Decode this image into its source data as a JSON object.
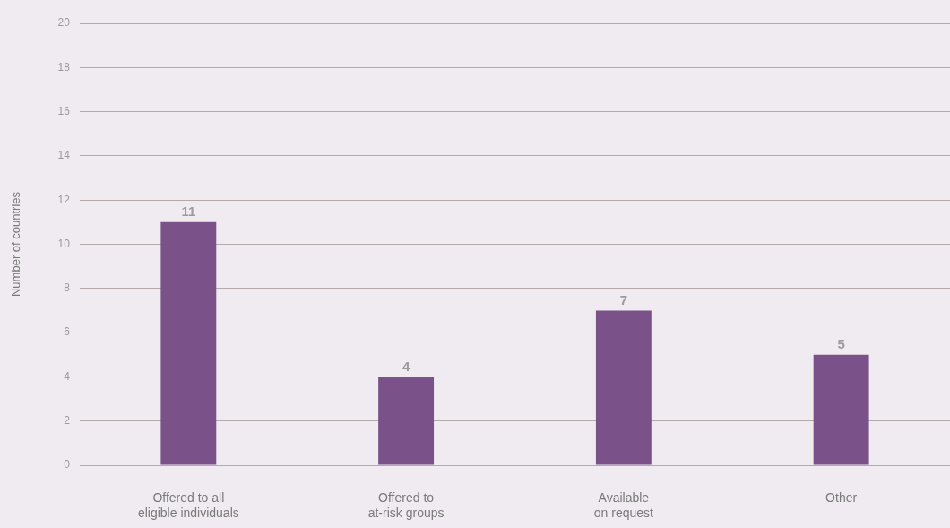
{
  "chart_data": {
    "type": "bar",
    "ylabel": "Number of countries",
    "categories": [
      "Offered to all\neligible individuals",
      "Offered to\nat-risk groups",
      "Available\non request",
      "Other"
    ],
    "values": [
      11,
      4,
      7,
      5
    ],
    "color": "#7b5189",
    "ylim": [
      0,
      20
    ],
    "yticks": [
      0,
      2,
      4,
      6,
      8,
      10,
      12,
      14,
      16,
      18,
      20
    ],
    "grid": "y",
    "data_labels": true
  }
}
